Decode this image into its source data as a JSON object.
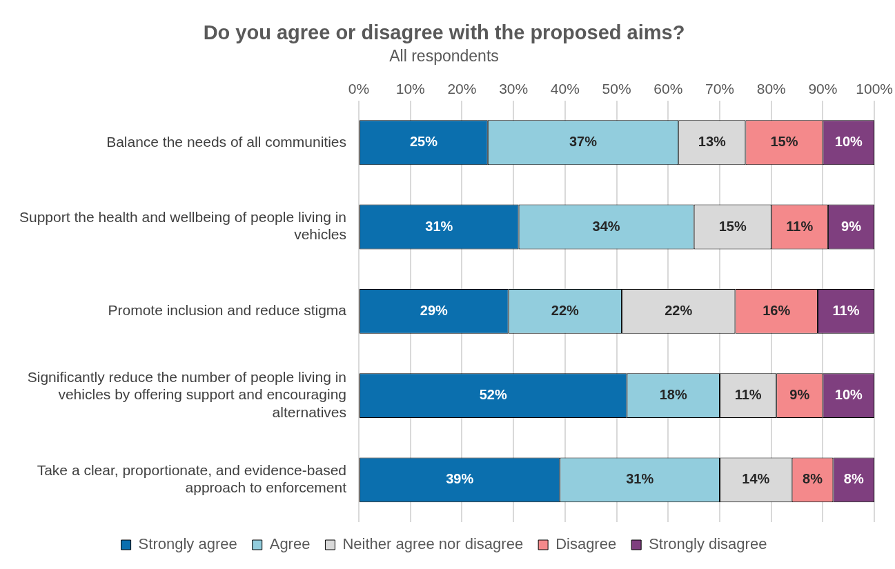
{
  "chart_data": {
    "type": "bar",
    "orientation": "horizontal",
    "stacked": true,
    "title": "Do you agree or disagree with the proposed aims?",
    "subtitle": "All respondents",
    "categories": [
      "Balance the needs of all communities",
      "Support the health and wellbeing of people living in vehicles",
      "Promote inclusion and reduce stigma",
      "Significantly reduce the number of people living in vehicles by offering support and encouraging alternatives",
      "Take a clear, proportionate, and evidence-based approach to enforcement"
    ],
    "series": [
      {
        "name": "Strongly agree",
        "color": "#0b6fae",
        "values": [
          25,
          31,
          29,
          52,
          39
        ],
        "value_labels": [
          "25%",
          "31%",
          "29%",
          "52%",
          "39%"
        ]
      },
      {
        "name": "Agree",
        "color": "#92cddd",
        "values": [
          37,
          34,
          22,
          18,
          31
        ],
        "value_labels": [
          "37%",
          "34%",
          "22%",
          "18%",
          "31%"
        ]
      },
      {
        "name": "Neither agree nor disagree",
        "color": "#d9d9d9",
        "values": [
          13,
          15,
          22,
          11,
          14
        ],
        "value_labels": [
          "13%",
          "15%",
          "22%",
          "11%",
          "14%"
        ]
      },
      {
        "name": "Disagree",
        "color": "#f4898b",
        "values": [
          15,
          11,
          16,
          9,
          8
        ],
        "value_labels": [
          "15%",
          "11%",
          "16%",
          "9%",
          "8%"
        ]
      },
      {
        "name": "Strongly disagree",
        "color": "#7f3f7f",
        "values": [
          10,
          9,
          11,
          10,
          8
        ],
        "value_labels": [
          "10%",
          "9%",
          "11%",
          "10%",
          "8%"
        ]
      }
    ],
    "xlim": [
      0,
      100
    ],
    "xticks": [
      {
        "value": 0,
        "label": "0%"
      },
      {
        "value": 10,
        "label": "10%"
      },
      {
        "value": 20,
        "label": "20%"
      },
      {
        "value": 30,
        "label": "30%"
      },
      {
        "value": 40,
        "label": "40%"
      },
      {
        "value": 50,
        "label": "50%"
      },
      {
        "value": 60,
        "label": "60%"
      },
      {
        "value": 70,
        "label": "70%"
      },
      {
        "value": 80,
        "label": "80%"
      },
      {
        "value": 90,
        "label": "90%"
      },
      {
        "value": 100,
        "label": "100%"
      }
    ],
    "grid": "x",
    "legend": "bottom"
  }
}
